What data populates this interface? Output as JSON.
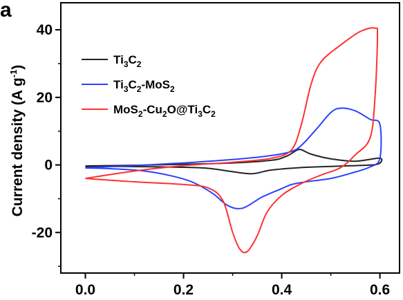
{
  "panel_label": "a",
  "chart_data": {
    "type": "line",
    "title": "",
    "xlabel": "",
    "ylabel": "Current density (A g⁻¹)",
    "ylabel_parts": {
      "main": "Current density (A g",
      "sup": "-1",
      "tail": ")"
    },
    "xlim": [
      -0.05,
      0.64
    ],
    "ylim": [
      -32,
      48
    ],
    "xticks": [
      0.0,
      0.2,
      0.4,
      0.6
    ],
    "xtick_labels": [
      "0.0",
      "0.2",
      "0.4",
      "0.6"
    ],
    "yticks": [
      -20,
      0,
      20,
      40
    ],
    "ytick_labels": [
      "-20",
      "0",
      "20",
      "40"
    ],
    "grid": false,
    "legend_position": "top-left",
    "series": [
      {
        "name": "Ti3C2",
        "legend_parts": [
          {
            "t": "Ti",
            "sub": false
          },
          {
            "t": "3",
            "sub": true
          },
          {
            "t": "C",
            "sub": false
          },
          {
            "t": "2",
            "sub": true
          }
        ],
        "color": "#222222",
        "points": [
          [
            0.0,
            -0.3
          ],
          [
            0.1,
            -0.1
          ],
          [
            0.2,
            0.2
          ],
          [
            0.3,
            0.6
          ],
          [
            0.38,
            1.4
          ],
          [
            0.41,
            2.6
          ],
          [
            0.43,
            4.3
          ],
          [
            0.44,
            4.5
          ],
          [
            0.46,
            3.2
          ],
          [
            0.5,
            1.8
          ],
          [
            0.55,
            1.1
          ],
          [
            0.6,
            2.0
          ],
          [
            0.595,
            0.2
          ],
          [
            0.55,
            -0.2
          ],
          [
            0.45,
            -0.7
          ],
          [
            0.38,
            -1.5
          ],
          [
            0.34,
            -2.6
          ],
          [
            0.3,
            -2.0
          ],
          [
            0.25,
            -1.0
          ],
          [
            0.2,
            -0.7
          ],
          [
            0.1,
            -0.5
          ],
          [
            0.0,
            -0.4
          ]
        ]
      },
      {
        "name": "Ti3C2-MoS2",
        "legend_parts": [
          {
            "t": "Ti",
            "sub": false
          },
          {
            "t": "3",
            "sub": true
          },
          {
            "t": "C",
            "sub": false
          },
          {
            "t": "2",
            "sub": true
          },
          {
            "t": "-MoS",
            "sub": false
          },
          {
            "t": "2",
            "sub": true
          }
        ],
        "color": "#2a40ff",
        "points": [
          [
            0.0,
            -0.8
          ],
          [
            0.1,
            -0.2
          ],
          [
            0.2,
            0.6
          ],
          [
            0.3,
            1.6
          ],
          [
            0.38,
            2.8
          ],
          [
            0.42,
            4.0
          ],
          [
            0.44,
            5.8
          ],
          [
            0.47,
            10.5
          ],
          [
            0.5,
            15.5
          ],
          [
            0.52,
            16.8
          ],
          [
            0.55,
            16.0
          ],
          [
            0.58,
            13.5
          ],
          [
            0.6,
            12.0
          ],
          [
            0.6,
            2.0
          ],
          [
            0.58,
            -0.6
          ],
          [
            0.54,
            -2.5
          ],
          [
            0.5,
            -4.0
          ],
          [
            0.45,
            -5.0
          ],
          [
            0.42,
            -5.8
          ],
          [
            0.4,
            -7.0
          ],
          [
            0.36,
            -9.5
          ],
          [
            0.32,
            -12.8
          ],
          [
            0.29,
            -12.0
          ],
          [
            0.26,
            -8.5
          ],
          [
            0.22,
            -5.2
          ],
          [
            0.18,
            -3.4
          ],
          [
            0.12,
            -1.8
          ],
          [
            0.05,
            -1.1
          ],
          [
            0.0,
            -0.9
          ]
        ]
      },
      {
        "name": "MoS2-Cu2O@Ti3C2",
        "legend_parts": [
          {
            "t": "MoS",
            "sub": false
          },
          {
            "t": "2",
            "sub": true
          },
          {
            "t": "-Cu",
            "sub": false
          },
          {
            "t": "2",
            "sub": true
          },
          {
            "t": "O@Ti",
            "sub": false
          },
          {
            "t": "3",
            "sub": true
          },
          {
            "t": "C",
            "sub": false
          },
          {
            "t": "2",
            "sub": true
          }
        ],
        "color": "#ff3030",
        "points": [
          [
            0.0,
            -4.0
          ],
          [
            0.1,
            -1.8
          ],
          [
            0.2,
            -0.2
          ],
          [
            0.3,
            0.8
          ],
          [
            0.38,
            2.0
          ],
          [
            0.42,
            4.5
          ],
          [
            0.44,
            12.0
          ],
          [
            0.46,
            24.0
          ],
          [
            0.48,
            30.5
          ],
          [
            0.52,
            35.5
          ],
          [
            0.56,
            39.5
          ],
          [
            0.59,
            40.5
          ],
          [
            0.595,
            38.0
          ],
          [
            0.59,
            20.0
          ],
          [
            0.58,
            8.0
          ],
          [
            0.55,
            3.0
          ],
          [
            0.52,
            -0.8
          ],
          [
            0.48,
            -3.0
          ],
          [
            0.44,
            -5.5
          ],
          [
            0.4,
            -9.0
          ],
          [
            0.37,
            -14.0
          ],
          [
            0.35,
            -21.0
          ],
          [
            0.33,
            -25.6
          ],
          [
            0.315,
            -25.0
          ],
          [
            0.3,
            -20.0
          ],
          [
            0.28,
            -10.5
          ],
          [
            0.25,
            -6.8
          ],
          [
            0.2,
            -5.8
          ],
          [
            0.1,
            -5.0
          ],
          [
            0.0,
            -4.0
          ]
        ]
      }
    ]
  }
}
